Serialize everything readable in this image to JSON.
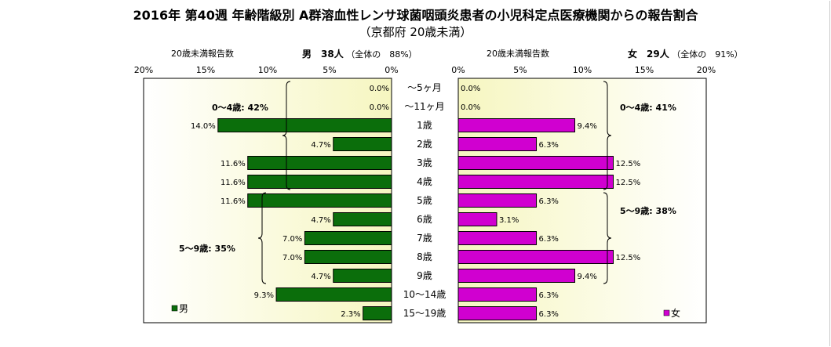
{
  "title": "2016年 第40週 年齢階級別 A群溶血性レンサ球菌咽頭炎患者の小児科定点医療機関からの報告割合",
  "subtitle": "（京都府 20歳未満）",
  "male_header": {
    "count_label": "20歳未満報告数",
    "sex_count": "男　38人",
    "share": "（全体の　88%）"
  },
  "female_header": {
    "count_label": "20歳未満報告数",
    "sex_count": "女　29人",
    "share": "（全体の　91%）"
  },
  "colors": {
    "male": "#0b6e0b",
    "female": "#d000d0",
    "plot_bg_edge": "#ffffff",
    "plot_bg_center": "#f6f6c0"
  },
  "chart_data": {
    "type": "bar",
    "orientation": "horizontal",
    "categories": [
      "～5ヶ月",
      "～11ヶ月",
      "1歳",
      "2歳",
      "3歳",
      "4歳",
      "5歳",
      "6歳",
      "7歳",
      "8歳",
      "9歳",
      "10～14歳",
      "15～19歳"
    ],
    "series": [
      {
        "name": "男",
        "values": [
          0.0,
          0.0,
          14.0,
          4.7,
          11.6,
          11.6,
          11.6,
          4.7,
          7.0,
          7.0,
          4.7,
          9.3,
          2.3
        ],
        "labels": [
          "0.0%",
          "0.0%",
          "14.0%",
          "4.7%",
          "11.6%",
          "11.6%",
          "11.6%",
          "4.7%",
          "7.0%",
          "7.0%",
          "4.7%",
          "9.3%",
          "2.3%"
        ]
      },
      {
        "name": "女",
        "values": [
          0.0,
          0.0,
          9.4,
          6.3,
          12.5,
          12.5,
          6.3,
          3.1,
          6.3,
          12.5,
          9.4,
          6.3,
          6.3
        ],
        "labels": [
          "0.0%",
          "0.0%",
          "9.4%",
          "6.3%",
          "12.5%",
          "12.5%",
          "6.3%",
          "3.1%",
          "6.3%",
          "12.5%",
          "9.4%",
          "6.3%",
          "6.3%"
        ]
      }
    ],
    "xlim": [
      0,
      20
    ],
    "male_ticks": [
      "20%",
      "15%",
      "10%",
      "5%",
      "0%"
    ],
    "female_ticks": [
      "0%",
      "5%",
      "10%",
      "15%",
      "20%"
    ],
    "annotations": {
      "male_0_4": "0～4歳: 42%",
      "male_5_9": "5～9歳: 35%",
      "female_0_4": "0～4歳: 41%",
      "female_5_9": "5～9歳: 38%"
    },
    "legend": {
      "male": "男",
      "female": "女"
    }
  }
}
